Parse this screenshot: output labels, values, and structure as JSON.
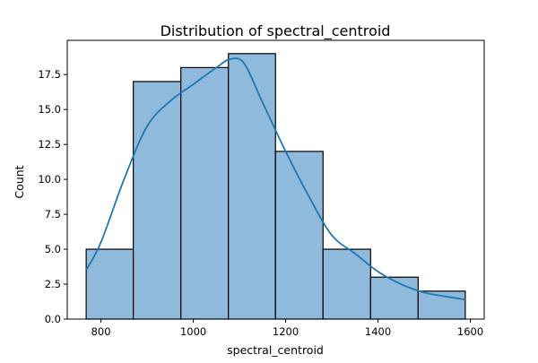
{
  "chart_data": {
    "type": "bar",
    "title": "Distribution of spectral_centroid",
    "xlabel": "spectral_centroid",
    "ylabel": "Count",
    "bins": [
      {
        "start": 768,
        "end": 870,
        "count": 5
      },
      {
        "start": 870,
        "end": 973,
        "count": 17
      },
      {
        "start": 973,
        "end": 1076,
        "count": 18
      },
      {
        "start": 1076,
        "end": 1178,
        "count": 19
      },
      {
        "start": 1178,
        "end": 1281,
        "count": 12
      },
      {
        "start": 1281,
        "end": 1384,
        "count": 5
      },
      {
        "start": 1384,
        "end": 1487,
        "count": 3
      },
      {
        "start": 1487,
        "end": 1589,
        "count": 2
      }
    ],
    "kde": {
      "x": [
        768,
        800,
        850,
        900,
        950,
        1000,
        1050,
        1080,
        1110,
        1150,
        1200,
        1250,
        1300,
        1350,
        1400,
        1450,
        1500,
        1550,
        1589
      ],
      "y": [
        3.5,
        5.5,
        10.0,
        13.8,
        15.6,
        16.8,
        18.0,
        18.6,
        18.3,
        15.5,
        12.0,
        8.8,
        6.0,
        4.7,
        3.4,
        2.5,
        1.9,
        1.6,
        1.4
      ]
    },
    "xlim": [
      727,
      1630
    ],
    "ylim": [
      0,
      19.95
    ],
    "xticks": [
      800,
      1000,
      1200,
      1400,
      1600
    ],
    "yticks": [
      "0.0",
      "2.5",
      "5.0",
      "7.5",
      "10.0",
      "12.5",
      "15.0",
      "17.5"
    ],
    "grid": false,
    "colors": {
      "bar_fill": "#8fbadc",
      "bar_edge": "#000000",
      "kde_line": "#1f77b4",
      "axes": "#000000"
    }
  }
}
